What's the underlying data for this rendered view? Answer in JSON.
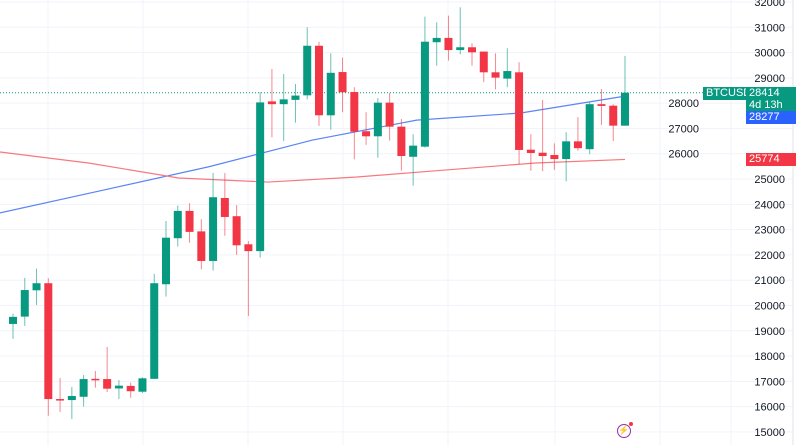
{
  "chart_data": {
    "type": "candlestick",
    "symbol": "BTCUSD",
    "last_price": "28414",
    "countdown": "4d 13h",
    "ylim": [
      15000,
      32000
    ],
    "y_ticks": [
      15000,
      16000,
      17000,
      18000,
      19000,
      20000,
      21000,
      22000,
      23000,
      24000,
      25000,
      26000,
      27000,
      28000,
      29000,
      30000,
      31000,
      32000
    ],
    "grid": true,
    "colors": {
      "up": "#089981",
      "down": "#f23645",
      "ma_fast": "#5b84f6",
      "ma_slow": "#f7787e",
      "background": "#ffffff"
    },
    "candles": [
      [
        19270,
        19680,
        18680,
        19550
      ],
      [
        19560,
        21090,
        19190,
        20610
      ],
      [
        20600,
        21460,
        20020,
        20880
      ],
      [
        20880,
        21080,
        15640,
        16300
      ],
      [
        16300,
        17130,
        15790,
        16250
      ],
      [
        16260,
        16780,
        15510,
        16420
      ],
      [
        16390,
        17250,
        16000,
        17090
      ],
      [
        17100,
        17410,
        16750,
        17070
      ],
      [
        17090,
        18360,
        16580,
        16710
      ],
      [
        16720,
        17050,
        16300,
        16830
      ],
      [
        16820,
        16950,
        16350,
        16610
      ],
      [
        16590,
        17160,
        16540,
        17120
      ],
      [
        17100,
        21250,
        17090,
        20880
      ],
      [
        20840,
        23340,
        20350,
        22680
      ],
      [
        22660,
        23950,
        22330,
        23740
      ],
      [
        23740,
        24040,
        22480,
        22910
      ],
      [
        22930,
        23410,
        21430,
        21760
      ],
      [
        21760,
        25240,
        21380,
        24280
      ],
      [
        24250,
        25240,
        22760,
        23500
      ],
      [
        23530,
        23970,
        22000,
        22380
      ],
      [
        22420,
        22550,
        19580,
        22150
      ],
      [
        22150,
        28440,
        21890,
        28030
      ],
      [
        28070,
        29350,
        26650,
        27960
      ],
      [
        27960,
        29150,
        26500,
        28150
      ],
      [
        28130,
        28760,
        27230,
        28300
      ],
      [
        28310,
        31000,
        28150,
        30270
      ],
      [
        30270,
        30430,
        27100,
        27520
      ],
      [
        27520,
        29970,
        26950,
        29200
      ],
      [
        29230,
        29800,
        27640,
        28430
      ],
      [
        28440,
        28630,
        25780,
        26870
      ],
      [
        26890,
        27640,
        26350,
        26690
      ],
      [
        26690,
        28200,
        25840,
        28020
      ],
      [
        28020,
        28410,
        26520,
        27070
      ],
      [
        27070,
        27370,
        25330,
        25910
      ],
      [
        25880,
        26770,
        24740,
        26320
      ],
      [
        26280,
        31420,
        26240,
        30430
      ],
      [
        30410,
        31200,
        29480,
        30580
      ],
      [
        30580,
        31460,
        29680,
        30100
      ],
      [
        30100,
        31790,
        29930,
        30210
      ],
      [
        30210,
        30370,
        29480,
        30010
      ],
      [
        30040,
        30040,
        28830,
        29220
      ],
      [
        29220,
        29970,
        28550,
        29010
      ],
      [
        28970,
        30170,
        28630,
        29270
      ],
      [
        29220,
        29620,
        25580,
        26150
      ],
      [
        26160,
        26770,
        25330,
        26030
      ],
      [
        26040,
        28130,
        25310,
        25910
      ],
      [
        25950,
        26410,
        25360,
        25790
      ],
      [
        25790,
        26850,
        24910,
        26490
      ],
      [
        26490,
        27450,
        26120,
        26220
      ],
      [
        26180,
        28030,
        25980,
        27960
      ],
      [
        27960,
        28560,
        27140,
        27890
      ],
      [
        27900,
        27960,
        26500,
        27110
      ],
      [
        27110,
        29870,
        27110,
        28414
      ]
    ],
    "series": [
      {
        "values": [
          23660,
          24570,
          25480,
          26540,
          27330,
          27610,
          28277
        ]
      },
      {
        "values": [
          26070,
          25630,
          25040,
          24880,
          25080,
          25360,
          25634,
          25774
        ]
      }
    ],
    "ma_fast_label": "28277",
    "ma_slow_label": "25774"
  }
}
